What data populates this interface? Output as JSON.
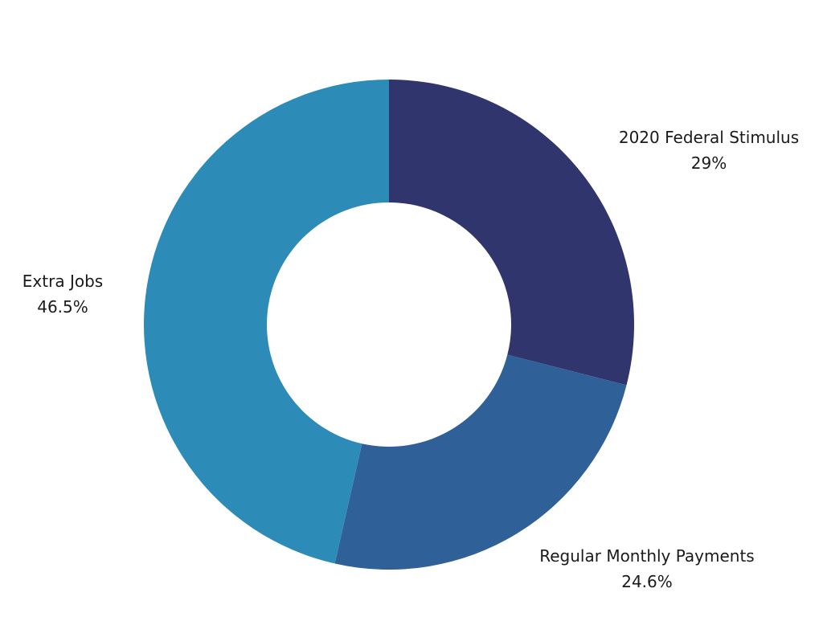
{
  "chart_data": {
    "type": "pie",
    "donut": true,
    "legend": "none",
    "start": "top",
    "direction": "clockwise",
    "slices": [
      {
        "name": "2020 Federal Stimulus",
        "value": 29,
        "value_label": "29%",
        "color": "#31356e"
      },
      {
        "name": "Regular Monthly Payments",
        "value": 24.6,
        "value_label": "24.6%",
        "color": "#2f6097"
      },
      {
        "name": "Extra Jobs",
        "value": 46.5,
        "value_label": "46.5%",
        "color": "#2d8bb8"
      }
    ]
  }
}
